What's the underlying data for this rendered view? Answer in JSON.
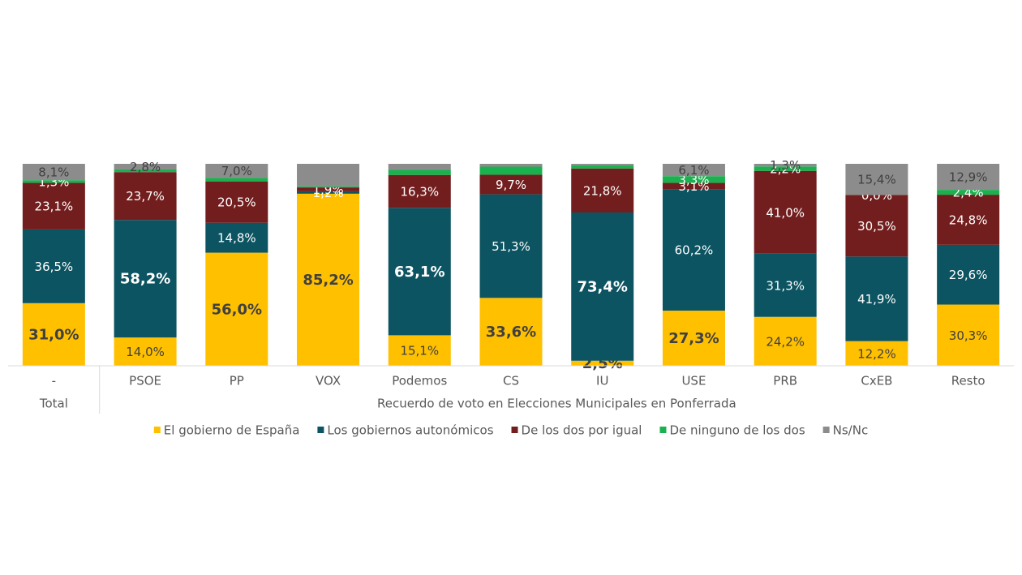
{
  "chart_data": {
    "type": "stacked_bar_100",
    "categories": [
      "-",
      "PSOE",
      "PP",
      "VOX",
      "Podemos",
      "CS",
      "IU",
      "USE",
      "PRB",
      "CxEB",
      "Resto"
    ],
    "groups": [
      {
        "label": "Total",
        "start": 0,
        "end": 0
      },
      {
        "label": "Recuerdo de voto en Elecciones Municipales en Ponferrada",
        "start": 1,
        "end": 10
      }
    ],
    "ylim": [
      0,
      100
    ],
    "series": [
      {
        "name": "El gobierno de España",
        "color": "#FFC000",
        "label_color": "#404040",
        "values": [
          31.0,
          14.0,
          56.0,
          85.2,
          15.1,
          33.6,
          2.5,
          27.3,
          24.2,
          12.2,
          30.3
        ],
        "value_labels": [
          "31,0%",
          "14,0%",
          "56,0%",
          "85,2%",
          "15,1%",
          "33,6%",
          "2,5%",
          "27,3%",
          "24,2%",
          "12,2%",
          "30,3%"
        ]
      },
      {
        "name": "Los gobiernos autonómicos",
        "color": "#0C5461",
        "label_color": "#ffffff",
        "values": [
          36.5,
          58.2,
          14.8,
          1.2,
          63.1,
          51.3,
          73.4,
          60.2,
          31.3,
          41.9,
          29.6
        ],
        "value_labels": [
          "36,5%",
          "58,2%",
          "14,8%",
          "1,2%",
          "63,1%",
          "51,3%",
          "73,4%",
          "60,2%",
          "31,3%",
          "41,9%",
          "29,6%"
        ]
      },
      {
        "name": "De los dos por igual",
        "color": "#731E1E",
        "label_color": "#ffffff",
        "values": [
          23.1,
          23.7,
          20.5,
          1.9,
          16.3,
          9.7,
          21.8,
          3.1,
          41.0,
          30.5,
          24.8
        ],
        "value_labels": [
          "23,1%",
          "23,7%",
          "20,5%",
          "1,9%",
          "16,3%",
          "9,7%",
          "21,8%",
          "3,1%",
          "41,0%",
          "30,5%",
          "24,8%"
        ]
      },
      {
        "name": "De ninguno de los dos",
        "color": "#19B24F",
        "label_color": "#ffffff",
        "values": [
          1.3,
          1.3,
          1.7,
          0.5,
          2.5,
          4.0,
          1.6,
          3.3,
          2.2,
          0.0,
          2.4
        ],
        "value_labels": [
          "1,3%",
          null,
          null,
          null,
          null,
          null,
          null,
          "3,3%",
          "2,2%",
          "0,0%",
          "2,4%"
        ]
      },
      {
        "name": "Ns/Nc",
        "color": "#8C8C8C",
        "label_color": "#404040",
        "values": [
          8.1,
          2.8,
          7.0,
          11.2,
          3.0,
          1.4,
          0.7,
          6.1,
          1.3,
          15.4,
          12.9
        ],
        "value_labels": [
          "8,1%",
          "2,8%",
          "7,0%",
          null,
          null,
          null,
          null,
          "6,1%",
          "1,3%",
          "15,4%",
          "12,9%"
        ]
      }
    ]
  }
}
